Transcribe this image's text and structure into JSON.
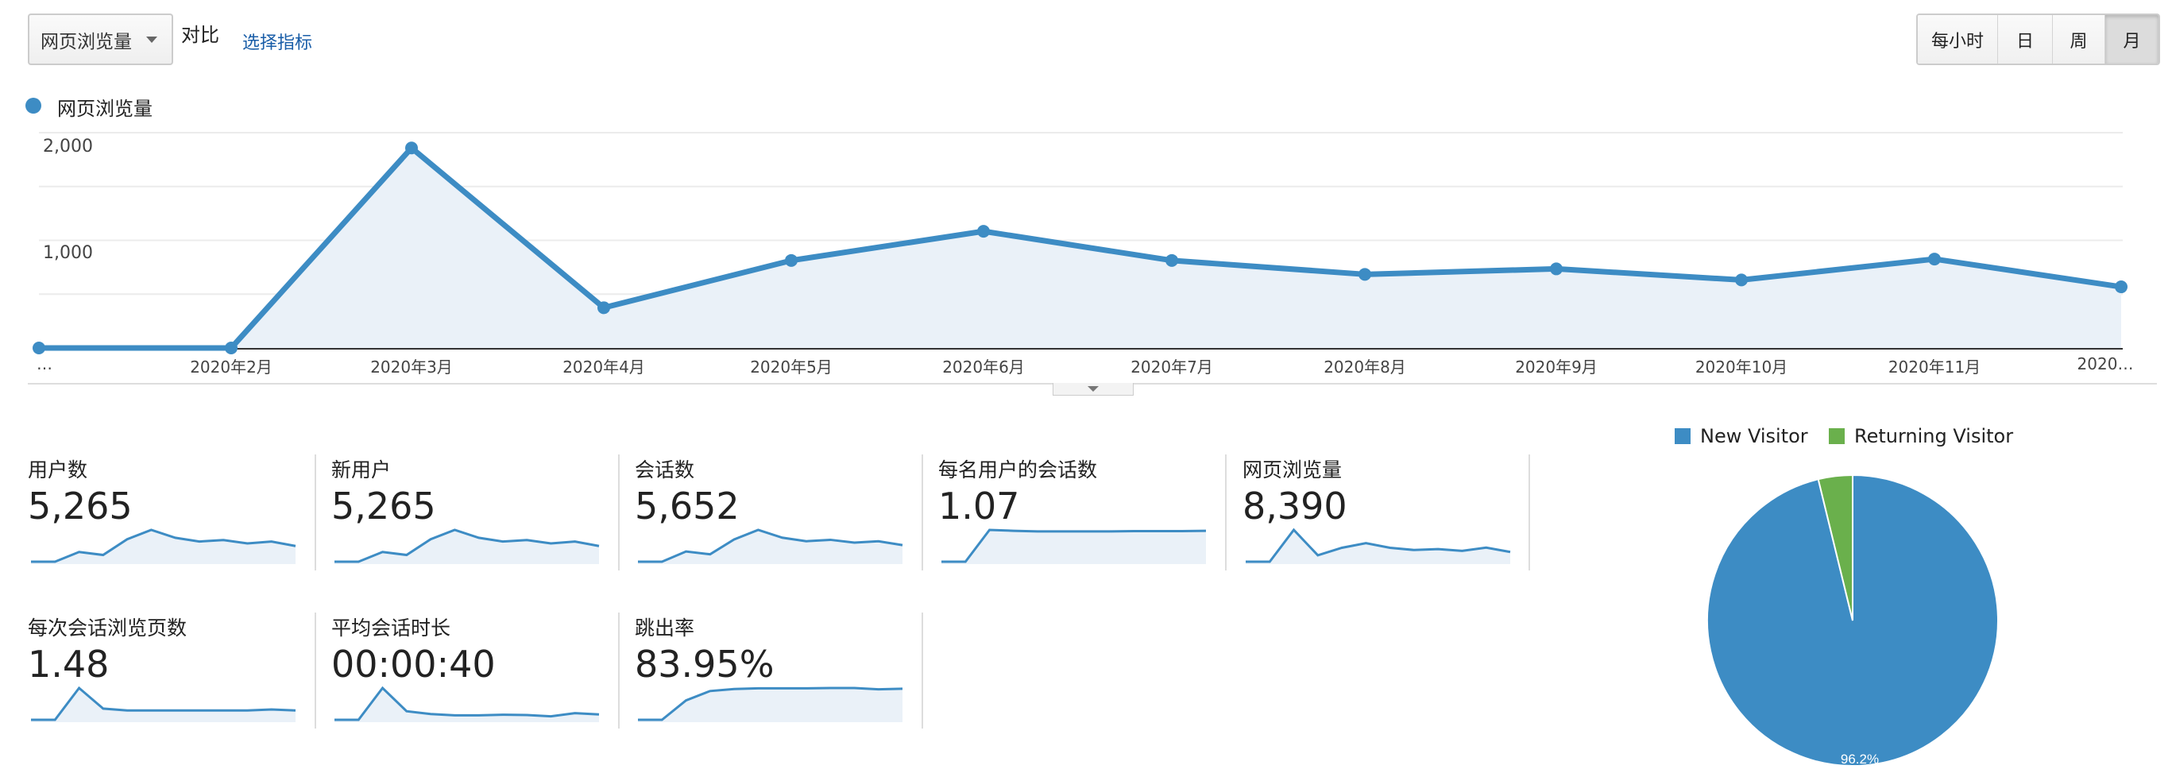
{
  "toolbar": {
    "metric_dropdown": "网页浏览量",
    "compare_label": "对比",
    "select_metric_link": "选择指标",
    "granularity": [
      {
        "label": "每小时",
        "active": false
      },
      {
        "label": "日",
        "active": false
      },
      {
        "label": "周",
        "active": false
      },
      {
        "label": "月",
        "active": true
      }
    ]
  },
  "chart_data": [
    {
      "type": "area",
      "legend": "网页浏览量",
      "series": [
        {
          "name": "网页浏览量",
          "color": "#3d8cc4",
          "values": [
            0,
            0,
            1858,
            374,
            813,
            1084,
            813,
            684,
            735,
            632,
            826,
            568
          ]
        }
      ],
      "x_tick_labels": [
        "…",
        "2020年2月",
        "2020年3月",
        "2020年4月",
        "2020年5月",
        "2020年6月",
        "2020年7月",
        "2020年8月",
        "2020年9月",
        "2020年10月",
        "2020年11月",
        "2020…"
      ],
      "y_tick_labels": [
        "2,000",
        "1,000"
      ],
      "ylim": [
        0,
        2000
      ],
      "grid": true,
      "legend_placement": "top-left"
    },
    {
      "type": "pie",
      "legend_placement": "top",
      "slices": [
        {
          "name": "New Visitor",
          "value": 96.2,
          "label": "96.2%",
          "color": "#3d8cc4"
        },
        {
          "name": "Returning Visitor",
          "value": 3.8,
          "label": "",
          "color": "#6ab04c"
        }
      ]
    }
  ],
  "metrics": [
    {
      "label": "用户数",
      "value": "5,265",
      "spark": [
        0,
        0,
        260,
        180,
        600,
        850,
        640,
        540,
        580,
        490,
        540,
        420
      ]
    },
    {
      "label": "新用户",
      "value": "5,265",
      "spark": [
        0,
        0,
        260,
        180,
        600,
        850,
        640,
        540,
        580,
        490,
        540,
        420
      ]
    },
    {
      "label": "会话数",
      "value": "5,652",
      "spark": [
        0,
        0,
        290,
        210,
        630,
        900,
        680,
        580,
        620,
        540,
        580,
        470
      ]
    },
    {
      "label": "每名用户的会话数",
      "value": "1.07",
      "spark": [
        0,
        0,
        1.1,
        1.07,
        1.05,
        1.05,
        1.05,
        1.05,
        1.06,
        1.06,
        1.06,
        1.07
      ]
    },
    {
      "label": "网页浏览量",
      "value": "8,390",
      "spark": [
        0,
        0,
        1858,
        374,
        813,
        1084,
        813,
        684,
        735,
        632,
        826,
        568
      ]
    },
    {
      "label": "每次会话浏览页数",
      "value": "1.48",
      "spark": [
        0,
        0,
        3.4,
        1.2,
        1.0,
        1.0,
        1.0,
        1.0,
        1.0,
        1.0,
        1.1,
        1.0
      ]
    },
    {
      "label": "平均会话时长",
      "value": "00:00:40",
      "spark": [
        0,
        0,
        100,
        27,
        18,
        14,
        14,
        16,
        15,
        11,
        21,
        17
      ]
    },
    {
      "label": "跳出率",
      "value": "83.95%",
      "spark": [
        0,
        0,
        58,
        86,
        92,
        94,
        94,
        94,
        95,
        95,
        91,
        93
      ]
    }
  ]
}
